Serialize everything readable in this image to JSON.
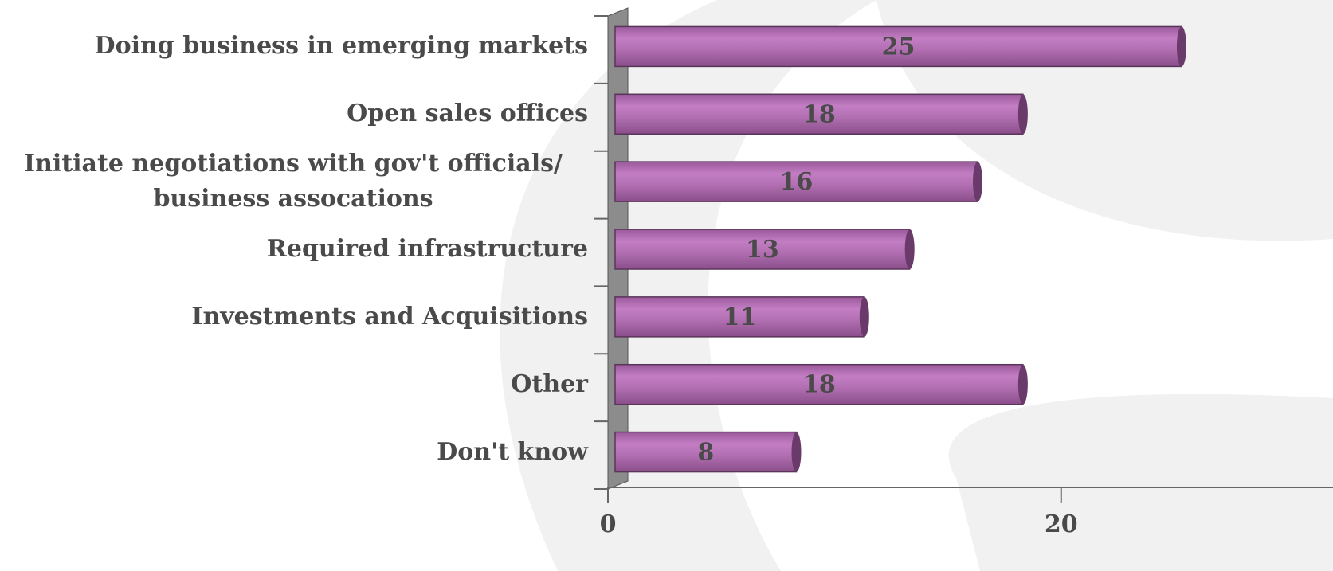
{
  "chart_data": {
    "type": "bar",
    "orientation": "horizontal",
    "categories": [
      "Doing business in emerging markets",
      "Open sales offices",
      "Initiate negotiations with gov't officials/ business assocations",
      "Required infrastructure",
      "Investments and Acquisitions",
      "Other",
      "Don't know"
    ],
    "values": [
      25,
      18,
      16,
      13,
      11,
      18,
      8
    ],
    "color": "#b472b4",
    "xlim": [
      0,
      32
    ],
    "xticks": [
      0,
      20
    ],
    "grid": false
  }
}
